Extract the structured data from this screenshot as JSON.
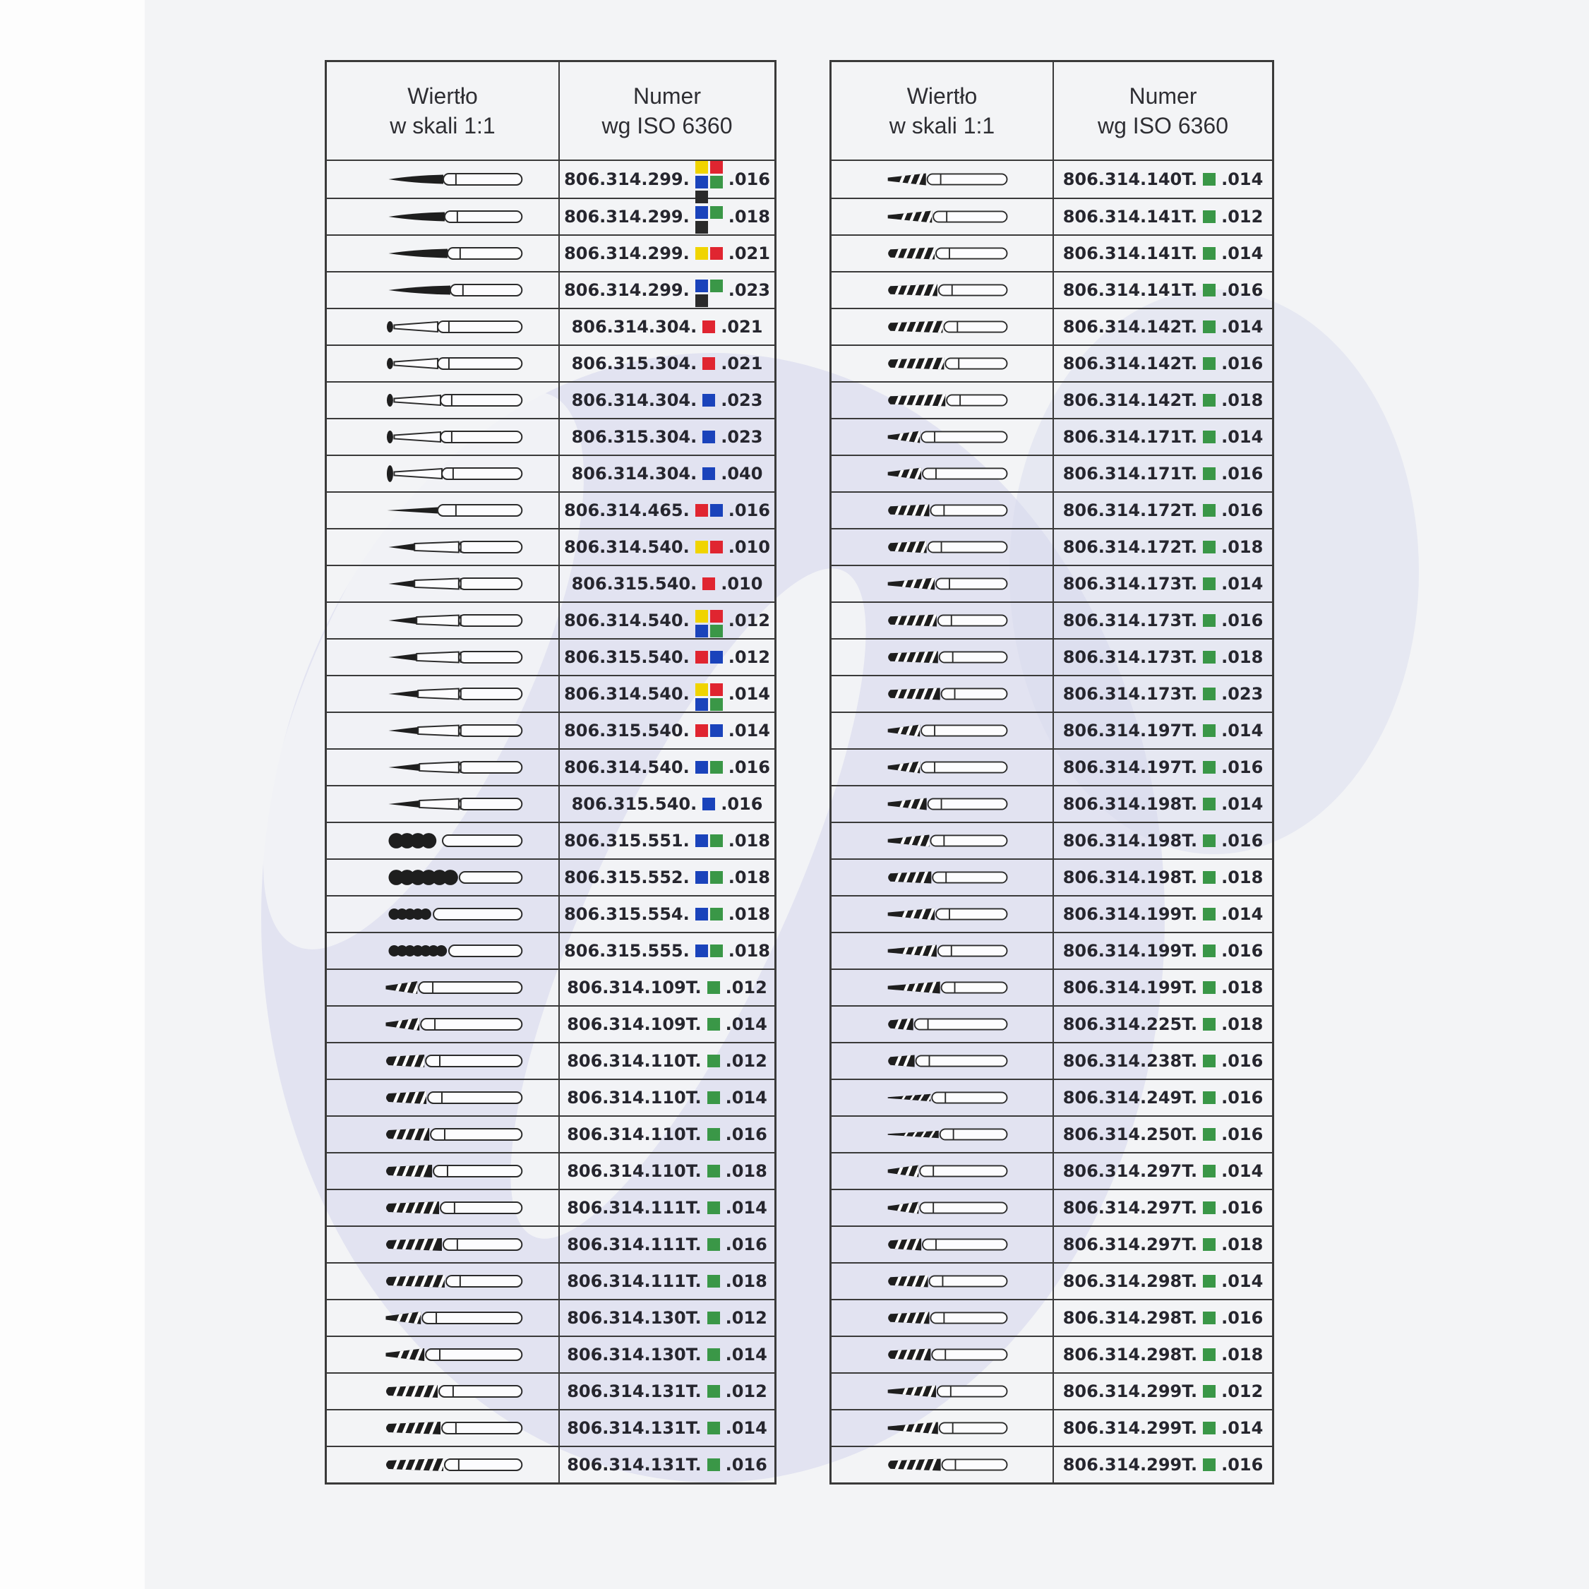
{
  "page": {
    "background": "#f3f4f6",
    "watermark_color": "#d6d9ee"
  },
  "colors": {
    "y": "#f0d400",
    "r": "#e02530",
    "b": "#1a43bb",
    "g": "#3a9747",
    "k": "#2a2a2a"
  },
  "tables": [
    {
      "name": "left",
      "header": {
        "drill_line1": "Wiertło",
        "drill_line2": "w skali 1:1",
        "number_line1": "Numer",
        "number_line2": "wg ISO 6360"
      },
      "rows": [
        {
          "num": "806.314.299.",
          "size": ".016",
          "sq": [
            [
              "y",
              "r"
            ],
            [
              "b",
              "g"
            ],
            [
              "k"
            ]
          ],
          "shape": "flame",
          "len": 78
        },
        {
          "num": "806.314.299.",
          "size": ".018",
          "sq": [
            [
              "b",
              "g"
            ],
            [
              "k"
            ]
          ],
          "shape": "flame",
          "len": 80
        },
        {
          "num": "806.314.299.",
          "size": ".021",
          "sq": [
            [
              "y",
              "r"
            ]
          ],
          "shape": "flame",
          "len": 84
        },
        {
          "num": "806.314.299.",
          "size": ".023",
          "sq": [
            [
              "b",
              "g"
            ],
            [
              "k"
            ]
          ],
          "shape": "flame",
          "len": 88
        },
        {
          "num": "806.314.304.",
          "size": ".021",
          "sq": [
            [
              "r"
            ]
          ],
          "shape": "cone",
          "len": 62,
          "tip": 8
        },
        {
          "num": "806.315.304.",
          "size": ".021",
          "sq": [
            [
              "r"
            ]
          ],
          "shape": "cone",
          "len": 62,
          "tip": 8
        },
        {
          "num": "806.314.304.",
          "size": ".023",
          "sq": [
            [
              "b"
            ]
          ],
          "shape": "cone",
          "len": 66,
          "tip": 9
        },
        {
          "num": "806.315.304.",
          "size": ".023",
          "sq": [
            [
              "b"
            ]
          ],
          "shape": "cone",
          "len": 66,
          "tip": 9
        },
        {
          "num": "806.314.304.",
          "size": ".040",
          "sq": [
            [
              "b"
            ]
          ],
          "shape": "cone",
          "len": 68,
          "tip": 12
        },
        {
          "num": "806.314.465.",
          "size": ".016",
          "sq": [
            [
              "r",
              "b"
            ]
          ],
          "shape": "needle",
          "len": 72
        },
        {
          "num": "806.314.540.",
          "size": ".010",
          "sq": [
            [
              "y",
              "r"
            ]
          ],
          "shape": "point",
          "len": 37
        },
        {
          "num": "806.315.540.",
          "size": ".010",
          "sq": [
            [
              "r"
            ]
          ],
          "shape": "point",
          "len": 37
        },
        {
          "num": "806.314.540.",
          "size": ".012",
          "sq": [
            [
              "y",
              "r"
            ],
            [
              "b",
              "g"
            ]
          ],
          "shape": "point",
          "len": 40
        },
        {
          "num": "806.315.540.",
          "size": ".012",
          "sq": [
            [
              "r",
              "b"
            ]
          ],
          "shape": "point",
          "len": 40
        },
        {
          "num": "806.314.540.",
          "size": ".014",
          "sq": [
            [
              "y",
              "r"
            ],
            [
              "b",
              "g"
            ]
          ],
          "shape": "point",
          "len": 42
        },
        {
          "num": "806.315.540.",
          "size": ".014",
          "sq": [
            [
              "r",
              "b"
            ]
          ],
          "shape": "point",
          "len": 42
        },
        {
          "num": "806.314.540.",
          "size": ".016",
          "sq": [
            [
              "b",
              "g"
            ]
          ],
          "shape": "point",
          "len": 44
        },
        {
          "num": "806.315.540.",
          "size": ".016",
          "sq": [
            [
              "b"
            ]
          ],
          "shape": "point",
          "len": 44
        },
        {
          "num": "806.315.551.",
          "size": ".018",
          "sq": [
            [
              "b",
              "g"
            ]
          ],
          "shape": "beads",
          "len": 66,
          "r": 11
        },
        {
          "num": "806.315.552.",
          "size": ".018",
          "sq": [
            [
              "b",
              "g"
            ]
          ],
          "shape": "beads",
          "len": 90,
          "r": 11
        },
        {
          "num": "806.315.554.",
          "size": ".018",
          "sq": [
            [
              "b",
              "g"
            ]
          ],
          "shape": "beads",
          "len": 56,
          "r": 8
        },
        {
          "num": "806.315.555.",
          "size": ".018",
          "sq": [
            [
              "b",
              "g"
            ]
          ],
          "shape": "beads",
          "len": 78,
          "r": 8
        },
        {
          "num": "806.314.109T.",
          "size": ".012",
          "sq": [
            [
              "g"
            ]
          ],
          "shape": "twistT",
          "len": 45
        },
        {
          "num": "806.314.109T.",
          "size": ".014",
          "sq": [
            [
              "g"
            ]
          ],
          "shape": "twistT",
          "len": 48
        },
        {
          "num": "806.314.110T.",
          "size": ".012",
          "sq": [
            [
              "g"
            ]
          ],
          "shape": "twist",
          "len": 55
        },
        {
          "num": "806.314.110T.",
          "size": ".014",
          "sq": [
            [
              "g"
            ]
          ],
          "shape": "twist",
          "len": 58
        },
        {
          "num": "806.314.110T.",
          "size": ".016",
          "sq": [
            [
              "g"
            ]
          ],
          "shape": "twist",
          "len": 62
        },
        {
          "num": "806.314.110T.",
          "size": ".018",
          "sq": [
            [
              "g"
            ]
          ],
          "shape": "twist",
          "len": 66
        },
        {
          "num": "806.314.111T.",
          "size": ".014",
          "sq": [
            [
              "g"
            ]
          ],
          "shape": "twist",
          "len": 76
        },
        {
          "num": "806.314.111T.",
          "size": ".016",
          "sq": [
            [
              "g"
            ]
          ],
          "shape": "twist",
          "len": 80
        },
        {
          "num": "806.314.111T.",
          "size": ".018",
          "sq": [
            [
              "g"
            ]
          ],
          "shape": "twist",
          "len": 84
        },
        {
          "num": "806.314.130T.",
          "size": ".012",
          "sq": [
            [
              "g"
            ]
          ],
          "shape": "twistT",
          "len": 50
        },
        {
          "num": "806.314.130T.",
          "size": ".014",
          "sq": [
            [
              "g"
            ]
          ],
          "shape": "twistT",
          "len": 55
        },
        {
          "num": "806.314.131T.",
          "size": ".012",
          "sq": [
            [
              "g"
            ]
          ],
          "shape": "twist",
          "len": 74
        },
        {
          "num": "806.314.131T.",
          "size": ".014",
          "sq": [
            [
              "g"
            ]
          ],
          "shape": "twist",
          "len": 78
        },
        {
          "num": "806.314.131T.",
          "size": ".016",
          "sq": [
            [
              "g"
            ]
          ],
          "shape": "twist",
          "len": 82
        }
      ]
    },
    {
      "name": "right",
      "header": {
        "drill_line1": "Wiertło",
        "drill_line2": "w skali 1:1",
        "number_line1": "Numer",
        "number_line2": "wg ISO 6360"
      },
      "rows": [
        {
          "num": "806.314.140T.",
          "size": ".014",
          "sq": [
            [
              "g"
            ]
          ],
          "shape": "twistT",
          "len": 57
        },
        {
          "num": "806.314.141T.",
          "size": ".012",
          "sq": [
            [
              "g"
            ]
          ],
          "shape": "twistT",
          "len": 66
        },
        {
          "num": "806.314.141T.",
          "size": ".014",
          "sq": [
            [
              "g"
            ]
          ],
          "shape": "twist",
          "len": 70
        },
        {
          "num": "806.314.141T.",
          "size": ".016",
          "sq": [
            [
              "g"
            ]
          ],
          "shape": "twist",
          "len": 74
        },
        {
          "num": "806.314.142T.",
          "size": ".014",
          "sq": [
            [
              "g"
            ]
          ],
          "shape": "twist",
          "len": 82
        },
        {
          "num": "806.314.142T.",
          "size": ".016",
          "sq": [
            [
              "g"
            ]
          ],
          "shape": "twist",
          "len": 84
        },
        {
          "num": "806.314.142T.",
          "size": ".018",
          "sq": [
            [
              "g"
            ]
          ],
          "shape": "twist",
          "len": 86
        },
        {
          "num": "806.314.171T.",
          "size": ".014",
          "sq": [
            [
              "g"
            ]
          ],
          "shape": "twistT",
          "len": 48
        },
        {
          "num": "806.314.171T.",
          "size": ".016",
          "sq": [
            [
              "g"
            ]
          ],
          "shape": "twistT",
          "len": 50
        },
        {
          "num": "806.314.172T.",
          "size": ".016",
          "sq": [
            [
              "g"
            ]
          ],
          "shape": "twist",
          "len": 62
        },
        {
          "num": "806.314.172T.",
          "size": ".018",
          "sq": [
            [
              "g"
            ]
          ],
          "shape": "twist",
          "len": 58
        },
        {
          "num": "806.314.173T.",
          "size": ".014",
          "sq": [
            [
              "g"
            ]
          ],
          "shape": "twistT",
          "len": 70
        },
        {
          "num": "806.314.173T.",
          "size": ".016",
          "sq": [
            [
              "g"
            ]
          ],
          "shape": "twist",
          "len": 73
        },
        {
          "num": "806.314.173T.",
          "size": ".018",
          "sq": [
            [
              "g"
            ]
          ],
          "shape": "twist",
          "len": 75
        },
        {
          "num": "806.314.173T.",
          "size": ".023",
          "sq": [
            [
              "g"
            ]
          ],
          "shape": "twist",
          "len": 78
        },
        {
          "num": "806.314.197T.",
          "size": ".014",
          "sq": [
            [
              "g"
            ]
          ],
          "shape": "twistT",
          "len": 48
        },
        {
          "num": "806.314.197T.",
          "size": ".016",
          "sq": [
            [
              "g"
            ]
          ],
          "shape": "twistT",
          "len": 48
        },
        {
          "num": "806.314.198T.",
          "size": ".014",
          "sq": [
            [
              "g"
            ]
          ],
          "shape": "twistT",
          "len": 58
        },
        {
          "num": "806.314.198T.",
          "size": ".016",
          "sq": [
            [
              "g"
            ]
          ],
          "shape": "twistT",
          "len": 62
        },
        {
          "num": "806.314.198T.",
          "size": ".018",
          "sq": [
            [
              "g"
            ]
          ],
          "shape": "twist",
          "len": 65
        },
        {
          "num": "806.314.199T.",
          "size": ".014",
          "sq": [
            [
              "g"
            ]
          ],
          "shape": "twistT",
          "len": 70
        },
        {
          "num": "806.314.199T.",
          "size": ".016",
          "sq": [
            [
              "g"
            ]
          ],
          "shape": "twistT",
          "len": 73
        },
        {
          "num": "806.314.199T.",
          "size": ".018",
          "sq": [
            [
              "g"
            ]
          ],
          "shape": "twistT",
          "len": 78
        },
        {
          "num": "806.314.225T.",
          "size": ".018",
          "sq": [
            [
              "g"
            ]
          ],
          "shape": "twist",
          "len": 38
        },
        {
          "num": "806.314.238T.",
          "size": ".016",
          "sq": [
            [
              "g"
            ]
          ],
          "shape": "twist",
          "len": 40
        },
        {
          "num": "806.314.249T.",
          "size": ".016",
          "sq": [
            [
              "g"
            ]
          ],
          "shape": "twistN",
          "len": 64
        },
        {
          "num": "806.314.250T.",
          "size": ".016",
          "sq": [
            [
              "g"
            ]
          ],
          "shape": "twistN",
          "len": 76
        },
        {
          "num": "806.314.297T.",
          "size": ".014",
          "sq": [
            [
              "g"
            ]
          ],
          "shape": "twistT",
          "len": 46
        },
        {
          "num": "806.314.297T.",
          "size": ".016",
          "sq": [
            [
              "g"
            ]
          ],
          "shape": "twistT",
          "len": 46
        },
        {
          "num": "806.314.297T.",
          "size": ".018",
          "sq": [
            [
              "g"
            ]
          ],
          "shape": "twist",
          "len": 50
        },
        {
          "num": "806.314.298T.",
          "size": ".014",
          "sq": [
            [
              "g"
            ]
          ],
          "shape": "twist",
          "len": 60
        },
        {
          "num": "806.314.298T.",
          "size": ".016",
          "sq": [
            [
              "g"
            ]
          ],
          "shape": "twist",
          "len": 62
        },
        {
          "num": "806.314.298T.",
          "size": ".018",
          "sq": [
            [
              "g"
            ]
          ],
          "shape": "twist",
          "len": 64
        },
        {
          "num": "806.314.299T.",
          "size": ".012",
          "sq": [
            [
              "g"
            ]
          ],
          "shape": "twistT",
          "len": 72
        },
        {
          "num": "806.314.299T.",
          "size": ".014",
          "sq": [
            [
              "g"
            ]
          ],
          "shape": "twistT",
          "len": 75
        },
        {
          "num": "806.314.299T.",
          "size": ".016",
          "sq": [
            [
              "g"
            ]
          ],
          "shape": "twist",
          "len": 79
        }
      ]
    }
  ]
}
